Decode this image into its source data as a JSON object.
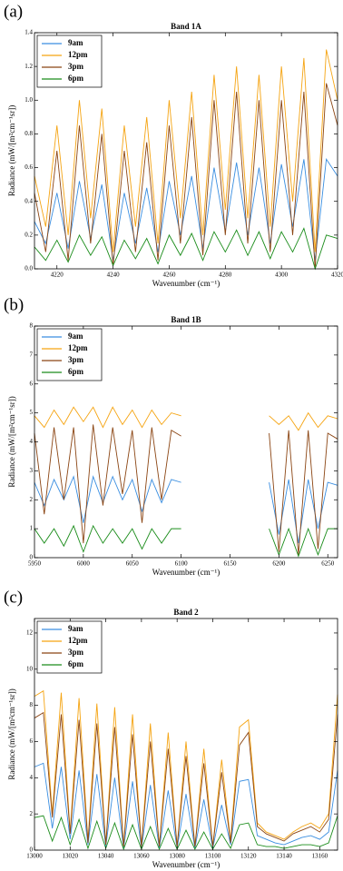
{
  "chart_data": [
    {
      "type": "line",
      "label": "(a)",
      "title": "Band 1A",
      "xlabel": "Wavenumber (cm⁻¹)",
      "ylabel": "Radiance (mW/[m²cm⁻¹sr])",
      "x": [
        4212,
        4216,
        4220,
        4224,
        4228,
        4232,
        4236,
        4240,
        4244,
        4248,
        4252,
        4256,
        4260,
        4264,
        4268,
        4272,
        4276,
        4280,
        4284,
        4288,
        4292,
        4296,
        4300,
        4304,
        4308,
        4312,
        4316,
        4320
      ],
      "series": [
        {
          "name": "9am",
          "color": "#3a8ee0",
          "values": [
            0.28,
            0.15,
            0.45,
            0.12,
            0.52,
            0.18,
            0.5,
            0.05,
            0.45,
            0.15,
            0.48,
            0.1,
            0.52,
            0.2,
            0.55,
            0.12,
            0.6,
            0.22,
            0.63,
            0.2,
            0.6,
            0.15,
            0.62,
            0.25,
            0.65,
            0.05,
            0.65,
            0.55
          ]
        },
        {
          "name": "12pm",
          "color": "#f5a412",
          "values": [
            0.55,
            0.25,
            0.85,
            0.2,
            1.0,
            0.3,
            0.95,
            0.1,
            0.85,
            0.25,
            0.9,
            0.15,
            1.0,
            0.3,
            1.05,
            0.2,
            1.15,
            0.35,
            1.2,
            0.3,
            1.15,
            0.25,
            1.2,
            0.4,
            1.25,
            0.1,
            1.3,
            1.0
          ]
        },
        {
          "name": "3pm",
          "color": "#8b4513",
          "values": [
            0.45,
            0.1,
            0.7,
            0.05,
            0.85,
            0.15,
            0.8,
            0.02,
            0.7,
            0.1,
            0.75,
            0.05,
            0.85,
            0.15,
            0.9,
            0.08,
            1.0,
            0.2,
            1.05,
            0.15,
            1.0,
            0.1,
            1.0,
            0.2,
            1.05,
            0,
            1.1,
            0.85
          ]
        },
        {
          "name": "6pm",
          "color": "#1a8c1a",
          "values": [
            0.13,
            0.05,
            0.17,
            0.04,
            0.2,
            0.08,
            0.19,
            0.02,
            0.17,
            0.06,
            0.18,
            0.03,
            0.2,
            0.08,
            0.21,
            0.05,
            0.22,
            0.1,
            0.23,
            0.08,
            0.22,
            0.06,
            0.22,
            0.1,
            0.24,
            0,
            0.2,
            0.18
          ]
        }
      ],
      "xlim": [
        4212,
        4320
      ],
      "xticks": [
        4220,
        4240,
        4260,
        4280,
        4300,
        4320
      ],
      "ylim": [
        0,
        1.4
      ],
      "yticks": [
        {
          "value": 0,
          "label": "0.0"
        },
        0.2,
        0.4,
        0.6,
        0.8,
        {
          "value": 1,
          "label": "1.0"
        },
        1.2,
        1.4
      ],
      "legend": "upper left"
    },
    {
      "type": "line",
      "label": "(b)",
      "title": "Band 1B",
      "xlabel": "Wavenumber (cm⁻¹)",
      "ylabel": "Radiance (mW/[m²cm⁻¹sr])",
      "x": [
        5950,
        5960,
        5970,
        5980,
        5990,
        6000,
        6010,
        6020,
        6030,
        6040,
        6050,
        6060,
        6070,
        6080,
        6090,
        6100,
        6145,
        6190,
        6200,
        6210,
        6220,
        6230,
        6240,
        6250,
        6260
      ],
      "series": [
        {
          "name": "9am",
          "color": "#3a8ee0",
          "values": [
            2.6,
            1.8,
            2.7,
            2.0,
            2.8,
            1.2,
            2.8,
            1.9,
            2.8,
            2.0,
            2.7,
            1.6,
            2.7,
            1.9,
            2.7,
            2.6,
            null,
            2.6,
            0.8,
            2.7,
            0.5,
            2.7,
            1.0,
            2.6,
            2.5
          ]
        },
        {
          "name": "12pm",
          "color": "#f5a412",
          "values": [
            4.9,
            4.5,
            5.1,
            4.6,
            5.2,
            4.7,
            5.2,
            4.5,
            5.2,
            4.6,
            5.1,
            4.5,
            5.1,
            4.6,
            5.0,
            4.9,
            null,
            4.9,
            4.6,
            4.9,
            4.4,
            5.0,
            4.5,
            4.9,
            4.8
          ]
        },
        {
          "name": "3pm",
          "color": "#8b4513",
          "values": [
            4.3,
            1.5,
            4.5,
            2.0,
            4.5,
            0.5,
            4.6,
            1.8,
            4.5,
            2.2,
            4.4,
            1.2,
            4.5,
            2.0,
            4.4,
            4.2,
            null,
            4.3,
            0.2,
            4.4,
            0.1,
            4.4,
            0.3,
            4.3,
            4.1
          ]
        },
        {
          "name": "6pm",
          "color": "#1a8c1a",
          "values": [
            1.0,
            0.5,
            1.0,
            0.4,
            1.1,
            0.2,
            1.1,
            0.5,
            1.0,
            0.5,
            1.0,
            0.3,
            1.0,
            0.5,
            1.0,
            1.0,
            null,
            1.0,
            0.1,
            1.0,
            0.05,
            1.0,
            0.1,
            1.0,
            1.0
          ]
        }
      ],
      "xlim": [
        5950,
        6260
      ],
      "xticks": [
        5950,
        6000,
        6050,
        6100,
        6150,
        6200,
        6250
      ],
      "ylim": [
        0,
        8
      ],
      "yticks": [
        0,
        1,
        2,
        3,
        4,
        5,
        6,
        7,
        8
      ],
      "legend": "upper left"
    },
    {
      "type": "line",
      "label": "(c)",
      "title": "Band 2",
      "xlabel": "Wavenumber (cm⁻¹)",
      "ylabel": "Radiance (mW/[m²cm⁻¹sr])",
      "x": [
        13000,
        13005,
        13010,
        13015,
        13020,
        13025,
        13030,
        13035,
        13040,
        13045,
        13050,
        13055,
        13060,
        13065,
        13070,
        13075,
        13080,
        13085,
        13090,
        13095,
        13100,
        13105,
        13110,
        13115,
        13120,
        13125,
        13130,
        13135,
        13140,
        13145,
        13150,
        13155,
        13160,
        13165,
        13170
      ],
      "series": [
        {
          "name": "9am",
          "color": "#3a8ee0",
          "values": [
            4.6,
            4.8,
            1.2,
            4.6,
            0.6,
            4.4,
            0.3,
            4.2,
            0.2,
            4.0,
            0.1,
            3.8,
            0.1,
            3.6,
            0.1,
            3.3,
            0.1,
            3.1,
            0.1,
            2.8,
            0.1,
            2.5,
            0.3,
            3.8,
            3.9,
            0.8,
            0.6,
            0.4,
            0.3,
            0.5,
            0.7,
            0.8,
            0.6,
            1.0,
            4.4
          ]
        },
        {
          "name": "12pm",
          "color": "#f5a412",
          "values": [
            8.5,
            8.8,
            2.0,
            8.7,
            1.0,
            8.4,
            0.5,
            8.1,
            0.3,
            7.9,
            0.2,
            7.5,
            0.2,
            7.0,
            0.2,
            6.5,
            0.2,
            6.0,
            0.2,
            5.6,
            0.2,
            5.0,
            0.5,
            6.8,
            7.2,
            1.5,
            1.0,
            0.8,
            0.6,
            1.0,
            1.3,
            1.5,
            1.2,
            2.0,
            8.6
          ]
        },
        {
          "name": "3pm",
          "color": "#8b4513",
          "values": [
            7.3,
            7.6,
            1.8,
            7.5,
            0.9,
            7.2,
            0.4,
            7.0,
            0.3,
            6.8,
            0.2,
            6.4,
            0.2,
            6.0,
            0.2,
            5.6,
            0.2,
            5.2,
            0.2,
            4.8,
            0.2,
            4.3,
            0.4,
            5.8,
            6.5,
            1.3,
            0.9,
            0.7,
            0.5,
            0.9,
            1.1,
            1.3,
            1.0,
            1.7,
            7.5
          ]
        },
        {
          "name": "6pm",
          "color": "#1a8c1a",
          "values": [
            1.8,
            1.9,
            0.5,
            1.8,
            0.3,
            1.7,
            0.1,
            1.6,
            0.1,
            1.5,
            0.05,
            1.4,
            0.05,
            1.3,
            0.05,
            1.2,
            0.05,
            1.1,
            0.05,
            1.0,
            0.05,
            0.9,
            0.1,
            1.4,
            1.5,
            0.3,
            0.2,
            0.2,
            0.1,
            0.2,
            0.3,
            0.3,
            0.2,
            0.4,
            1.9
          ]
        }
      ],
      "xlim": [
        13000,
        13170
      ],
      "xticks": [
        13000,
        13020,
        13040,
        13060,
        13080,
        13100,
        13120,
        13140,
        13160
      ],
      "ylim": [
        0,
        12.8
      ],
      "yticks": [
        0,
        2,
        4,
        6,
        8,
        10,
        12
      ],
      "legend": "upper left"
    }
  ]
}
